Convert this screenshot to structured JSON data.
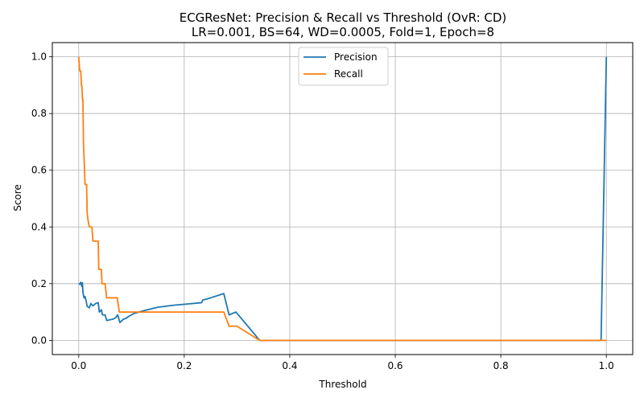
{
  "chart_data": {
    "type": "line",
    "title": "ECGResNet: Precision & Recall vs Threshold (OvR: CD)",
    "subtitle": "LR=0.001, BS=64, WD=0.0005, Fold=1, Epoch=8",
    "xlabel": "Threshold",
    "ylabel": "Score",
    "xlim": [
      -0.05,
      1.05
    ],
    "ylim": [
      -0.05,
      1.05
    ],
    "xticks": [
      0.0,
      0.2,
      0.4,
      0.6,
      0.8,
      1.0
    ],
    "xtick_labels": [
      "0.0",
      "0.2",
      "0.4",
      "0.6",
      "0.8",
      "1.0"
    ],
    "yticks": [
      0.0,
      0.2,
      0.4,
      0.6,
      0.8,
      1.0
    ],
    "ytick_labels": [
      "0.0",
      "0.2",
      "0.4",
      "0.6",
      "0.8",
      "1.0"
    ],
    "grid": true,
    "legend_position": "top-center",
    "series": [
      {
        "name": "Precision",
        "color": "#1f77b4",
        "points": [
          [
            0.0,
            0.2
          ],
          [
            0.002,
            0.198
          ],
          [
            0.004,
            0.205
          ],
          [
            0.006,
            0.19
          ],
          [
            0.007,
            0.203
          ],
          [
            0.008,
            0.17
          ],
          [
            0.01,
            0.15
          ],
          [
            0.012,
            0.155
          ],
          [
            0.014,
            0.14
          ],
          [
            0.016,
            0.12
          ],
          [
            0.02,
            0.115
          ],
          [
            0.023,
            0.13
          ],
          [
            0.027,
            0.122
          ],
          [
            0.032,
            0.13
          ],
          [
            0.037,
            0.133
          ],
          [
            0.039,
            0.1
          ],
          [
            0.043,
            0.108
          ],
          [
            0.045,
            0.09
          ],
          [
            0.05,
            0.09
          ],
          [
            0.053,
            0.07
          ],
          [
            0.06,
            0.073
          ],
          [
            0.065,
            0.075
          ],
          [
            0.07,
            0.08
          ],
          [
            0.074,
            0.09
          ],
          [
            0.078,
            0.063
          ],
          [
            0.082,
            0.07
          ],
          [
            0.085,
            0.075
          ],
          [
            0.09,
            0.078
          ],
          [
            0.095,
            0.085
          ],
          [
            0.1,
            0.09
          ],
          [
            0.105,
            0.095
          ],
          [
            0.12,
            0.103
          ],
          [
            0.15,
            0.117
          ],
          [
            0.18,
            0.124
          ],
          [
            0.21,
            0.129
          ],
          [
            0.233,
            0.133
          ],
          [
            0.235,
            0.142
          ],
          [
            0.25,
            0.15
          ],
          [
            0.275,
            0.165
          ],
          [
            0.285,
            0.09
          ],
          [
            0.298,
            0.1
          ],
          [
            0.343,
            0.0
          ],
          [
            0.99,
            0.0
          ],
          [
            1.0,
            1.0
          ]
        ]
      },
      {
        "name": "Recall",
        "color": "#ff7f0e",
        "points": [
          [
            0.0,
            1.0
          ],
          [
            0.002,
            0.95
          ],
          [
            0.004,
            0.95
          ],
          [
            0.005,
            0.9
          ],
          [
            0.006,
            0.9
          ],
          [
            0.007,
            0.85
          ],
          [
            0.008,
            0.85
          ],
          [
            0.009,
            0.7
          ],
          [
            0.011,
            0.6
          ],
          [
            0.012,
            0.55
          ],
          [
            0.015,
            0.55
          ],
          [
            0.016,
            0.45
          ],
          [
            0.018,
            0.42
          ],
          [
            0.02,
            0.4
          ],
          [
            0.025,
            0.4
          ],
          [
            0.027,
            0.35
          ],
          [
            0.037,
            0.35
          ],
          [
            0.038,
            0.25
          ],
          [
            0.043,
            0.25
          ],
          [
            0.044,
            0.2
          ],
          [
            0.05,
            0.2
          ],
          [
            0.053,
            0.15
          ],
          [
            0.073,
            0.15
          ],
          [
            0.077,
            0.1
          ],
          [
            0.275,
            0.1
          ],
          [
            0.285,
            0.05
          ],
          [
            0.3,
            0.05
          ],
          [
            0.343,
            0.0
          ],
          [
            1.0,
            0.0
          ]
        ]
      }
    ]
  }
}
